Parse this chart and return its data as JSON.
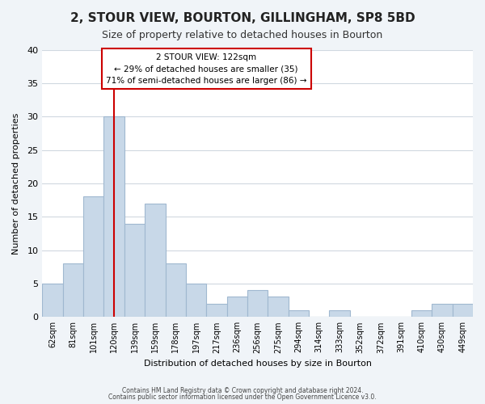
{
  "title": "2, STOUR VIEW, BOURTON, GILLINGHAM, SP8 5BD",
  "subtitle": "Size of property relative to detached houses in Bourton",
  "xlabel": "Distribution of detached houses by size in Bourton",
  "ylabel": "Number of detached properties",
  "bar_color": "#c8d8e8",
  "bar_edge_color": "#a0b8d0",
  "vline_color": "#cc0000",
  "vline_x": 3,
  "categories": [
    "62sqm",
    "81sqm",
    "101sqm",
    "120sqm",
    "139sqm",
    "159sqm",
    "178sqm",
    "197sqm",
    "217sqm",
    "236sqm",
    "256sqm",
    "275sqm",
    "294sqm",
    "314sqm",
    "333sqm",
    "352sqm",
    "372sqm",
    "391sqm",
    "410sqm",
    "430sqm",
    "449sqm"
  ],
  "values": [
    5,
    8,
    18,
    30,
    14,
    17,
    8,
    5,
    2,
    3,
    4,
    3,
    1,
    0,
    1,
    0,
    0,
    0,
    1,
    2,
    2
  ],
  "ylim": [
    0,
    40
  ],
  "yticks": [
    0,
    5,
    10,
    15,
    20,
    25,
    30,
    35,
    40
  ],
  "annotation_title": "2 STOUR VIEW: 122sqm",
  "annotation_line1": "← 29% of detached houses are smaller (35)",
  "annotation_line2": "71% of semi-detached houses are larger (86) →",
  "footer1": "Contains HM Land Registry data © Crown copyright and database right 2024.",
  "footer2": "Contains public sector information licensed under the Open Government Licence v3.0.",
  "bg_color": "#f0f4f8",
  "plot_bg_color": "#ffffff",
  "grid_color": "#d0d8e0"
}
